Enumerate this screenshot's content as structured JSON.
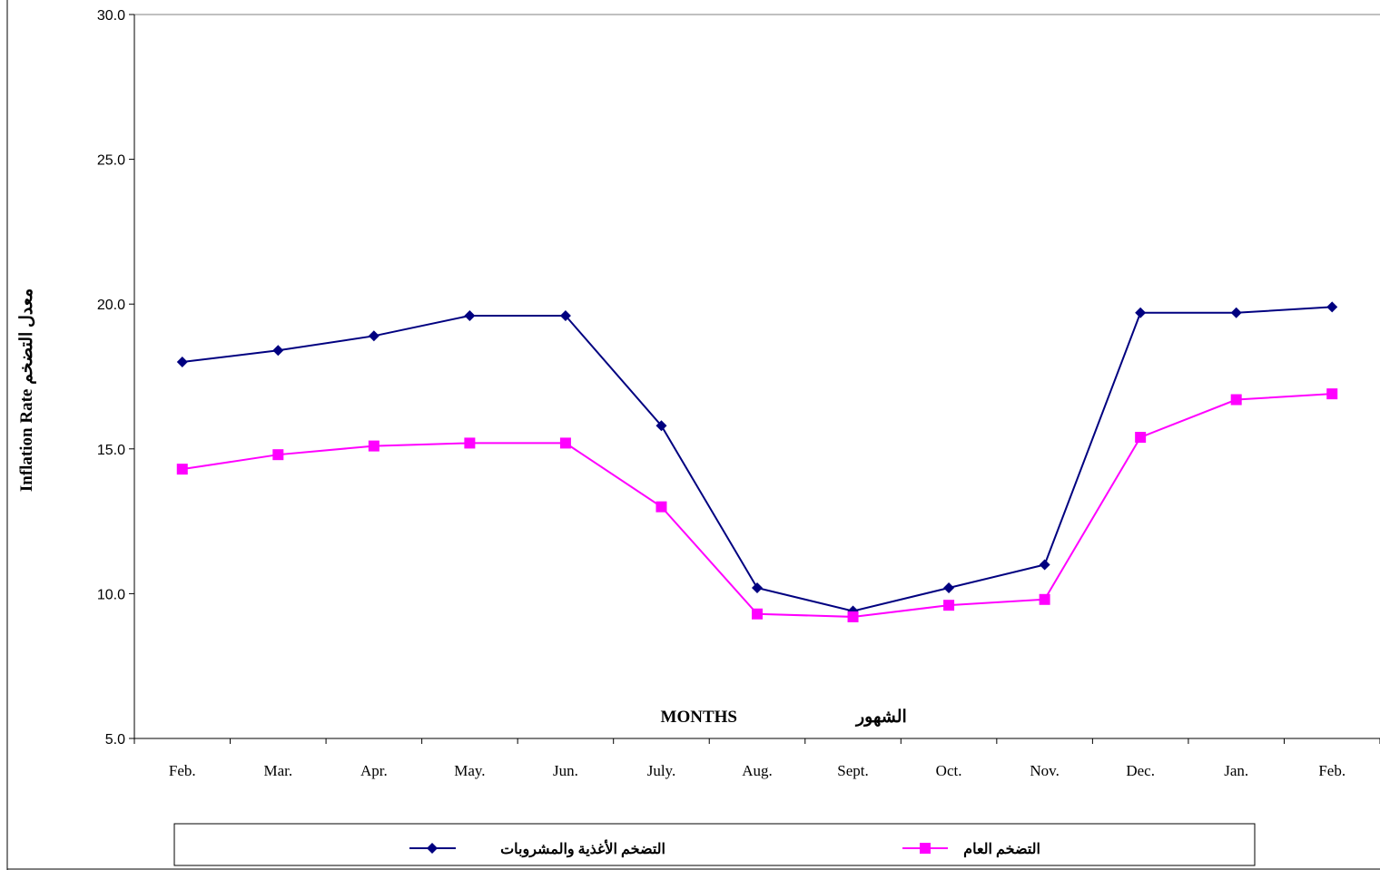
{
  "chart_data": {
    "type": "line",
    "categories": [
      "Feb.",
      "Mar.",
      "Apr.",
      "May.",
      "Jun.",
      "July.",
      "Aug.",
      "Sept.",
      "Oct.",
      "Nov.",
      "Dec.",
      "Jan.",
      "Feb."
    ],
    "series": [
      {
        "name": "التضخم الأغذية والمشروبات",
        "color": "#000080",
        "marker": "diamond",
        "values": [
          18.0,
          18.4,
          18.9,
          19.6,
          19.6,
          15.8,
          10.2,
          9.4,
          10.2,
          11.0,
          19.7,
          19.7,
          19.9
        ]
      },
      {
        "name": "التضخم العام",
        "color": "#FF00FF",
        "marker": "square",
        "values": [
          14.3,
          14.8,
          15.1,
          15.2,
          15.2,
          13.0,
          9.3,
          9.2,
          9.6,
          9.8,
          15.4,
          16.7,
          16.9
        ]
      }
    ],
    "ylim": [
      5.0,
      30.0
    ],
    "yticks": [
      "5.0",
      "10.0",
      "15.0",
      "20.0",
      "25.0",
      "30.0"
    ],
    "xlabel_en": "MONTHS",
    "xlabel_ar": "الشهور",
    "ylabel": "Inflation Rate معدل التضخم",
    "grid": false,
    "legend_position": "bottom"
  }
}
